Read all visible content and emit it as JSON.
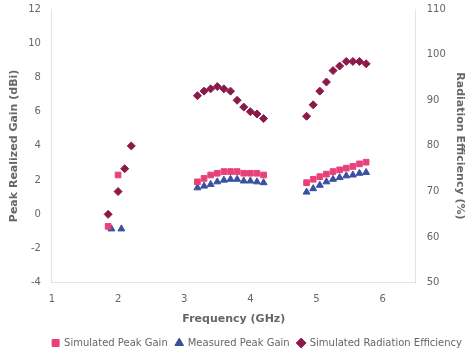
{
  "chart_data": {
    "type": "scatter",
    "x_label": "Frequency (GHz)",
    "y_label": "Peak Realized Gain (dBi)",
    "y2_label": "Radiation Efficiency (%)",
    "xlim": [
      1,
      6.5
    ],
    "ylim": [
      -4,
      12
    ],
    "y2lim": [
      50,
      110
    ],
    "xticks": [
      1,
      2,
      3,
      4,
      5,
      6
    ],
    "yticks": [
      -4,
      -2,
      0,
      2,
      4,
      6,
      8,
      10,
      12
    ],
    "y2ticks": [
      50,
      60,
      70,
      80,
      90,
      100,
      110
    ],
    "grid": false,
    "legend": "lower right",
    "series": [
      {
        "name": "Simulated Peak Gain",
        "color": "#e8417a",
        "marker": "square",
        "x": [
          1.85,
          2.0,
          3.2,
          3.3,
          3.4,
          3.5,
          3.6,
          3.7,
          3.8,
          3.9,
          4.0,
          4.1,
          4.2,
          4.85,
          4.95,
          5.05,
          5.15,
          5.25,
          5.35,
          5.45,
          5.55,
          5.65,
          5.75
        ],
        "values": [
          -0.7,
          2.3,
          1.9,
          2.1,
          2.3,
          2.4,
          2.5,
          2.5,
          2.5,
          2.4,
          2.4,
          2.4,
          2.3,
          1.85,
          2.05,
          2.2,
          2.35,
          2.5,
          2.6,
          2.7,
          2.8,
          2.95,
          3.05
        ]
      },
      {
        "name": "Measured Peak Gain",
        "color": "#3a4fa0",
        "marker": "triangle",
        "x": [
          1.9,
          2.05,
          3.2,
          3.3,
          3.4,
          3.5,
          3.6,
          3.7,
          3.8,
          3.9,
          4.0,
          4.1,
          4.2,
          4.85,
          4.95,
          5.05,
          5.15,
          5.25,
          5.35,
          5.45,
          5.55,
          5.65,
          5.75
        ],
        "values": [
          -0.85,
          -0.85,
          1.55,
          1.65,
          1.75,
          1.9,
          2.0,
          2.05,
          2.05,
          1.95,
          1.95,
          1.9,
          1.85,
          1.3,
          1.5,
          1.7,
          1.9,
          2.05,
          2.15,
          2.25,
          2.3,
          2.4,
          2.45
        ]
      },
      {
        "name": "Simulated Radiation Efficiency",
        "color": "#8b1a4a",
        "marker": "diamond",
        "axis": "y2",
        "x": [
          1.85,
          2.0,
          2.1,
          2.2,
          3.2,
          3.3,
          3.4,
          3.5,
          3.6,
          3.7,
          3.8,
          3.9,
          4.0,
          4.1,
          4.2,
          4.85,
          4.95,
          5.05,
          5.15,
          5.25,
          5.35,
          5.45,
          5.55,
          5.65,
          5.75
        ],
        "values": [
          65,
          70,
          75,
          80,
          91,
          92,
          92.5,
          93,
          92.5,
          92,
          90,
          88.5,
          87.5,
          87,
          86,
          86.5,
          89,
          92,
          94,
          96.5,
          97.5,
          98.5,
          98.5,
          98.5,
          98
        ]
      }
    ]
  }
}
